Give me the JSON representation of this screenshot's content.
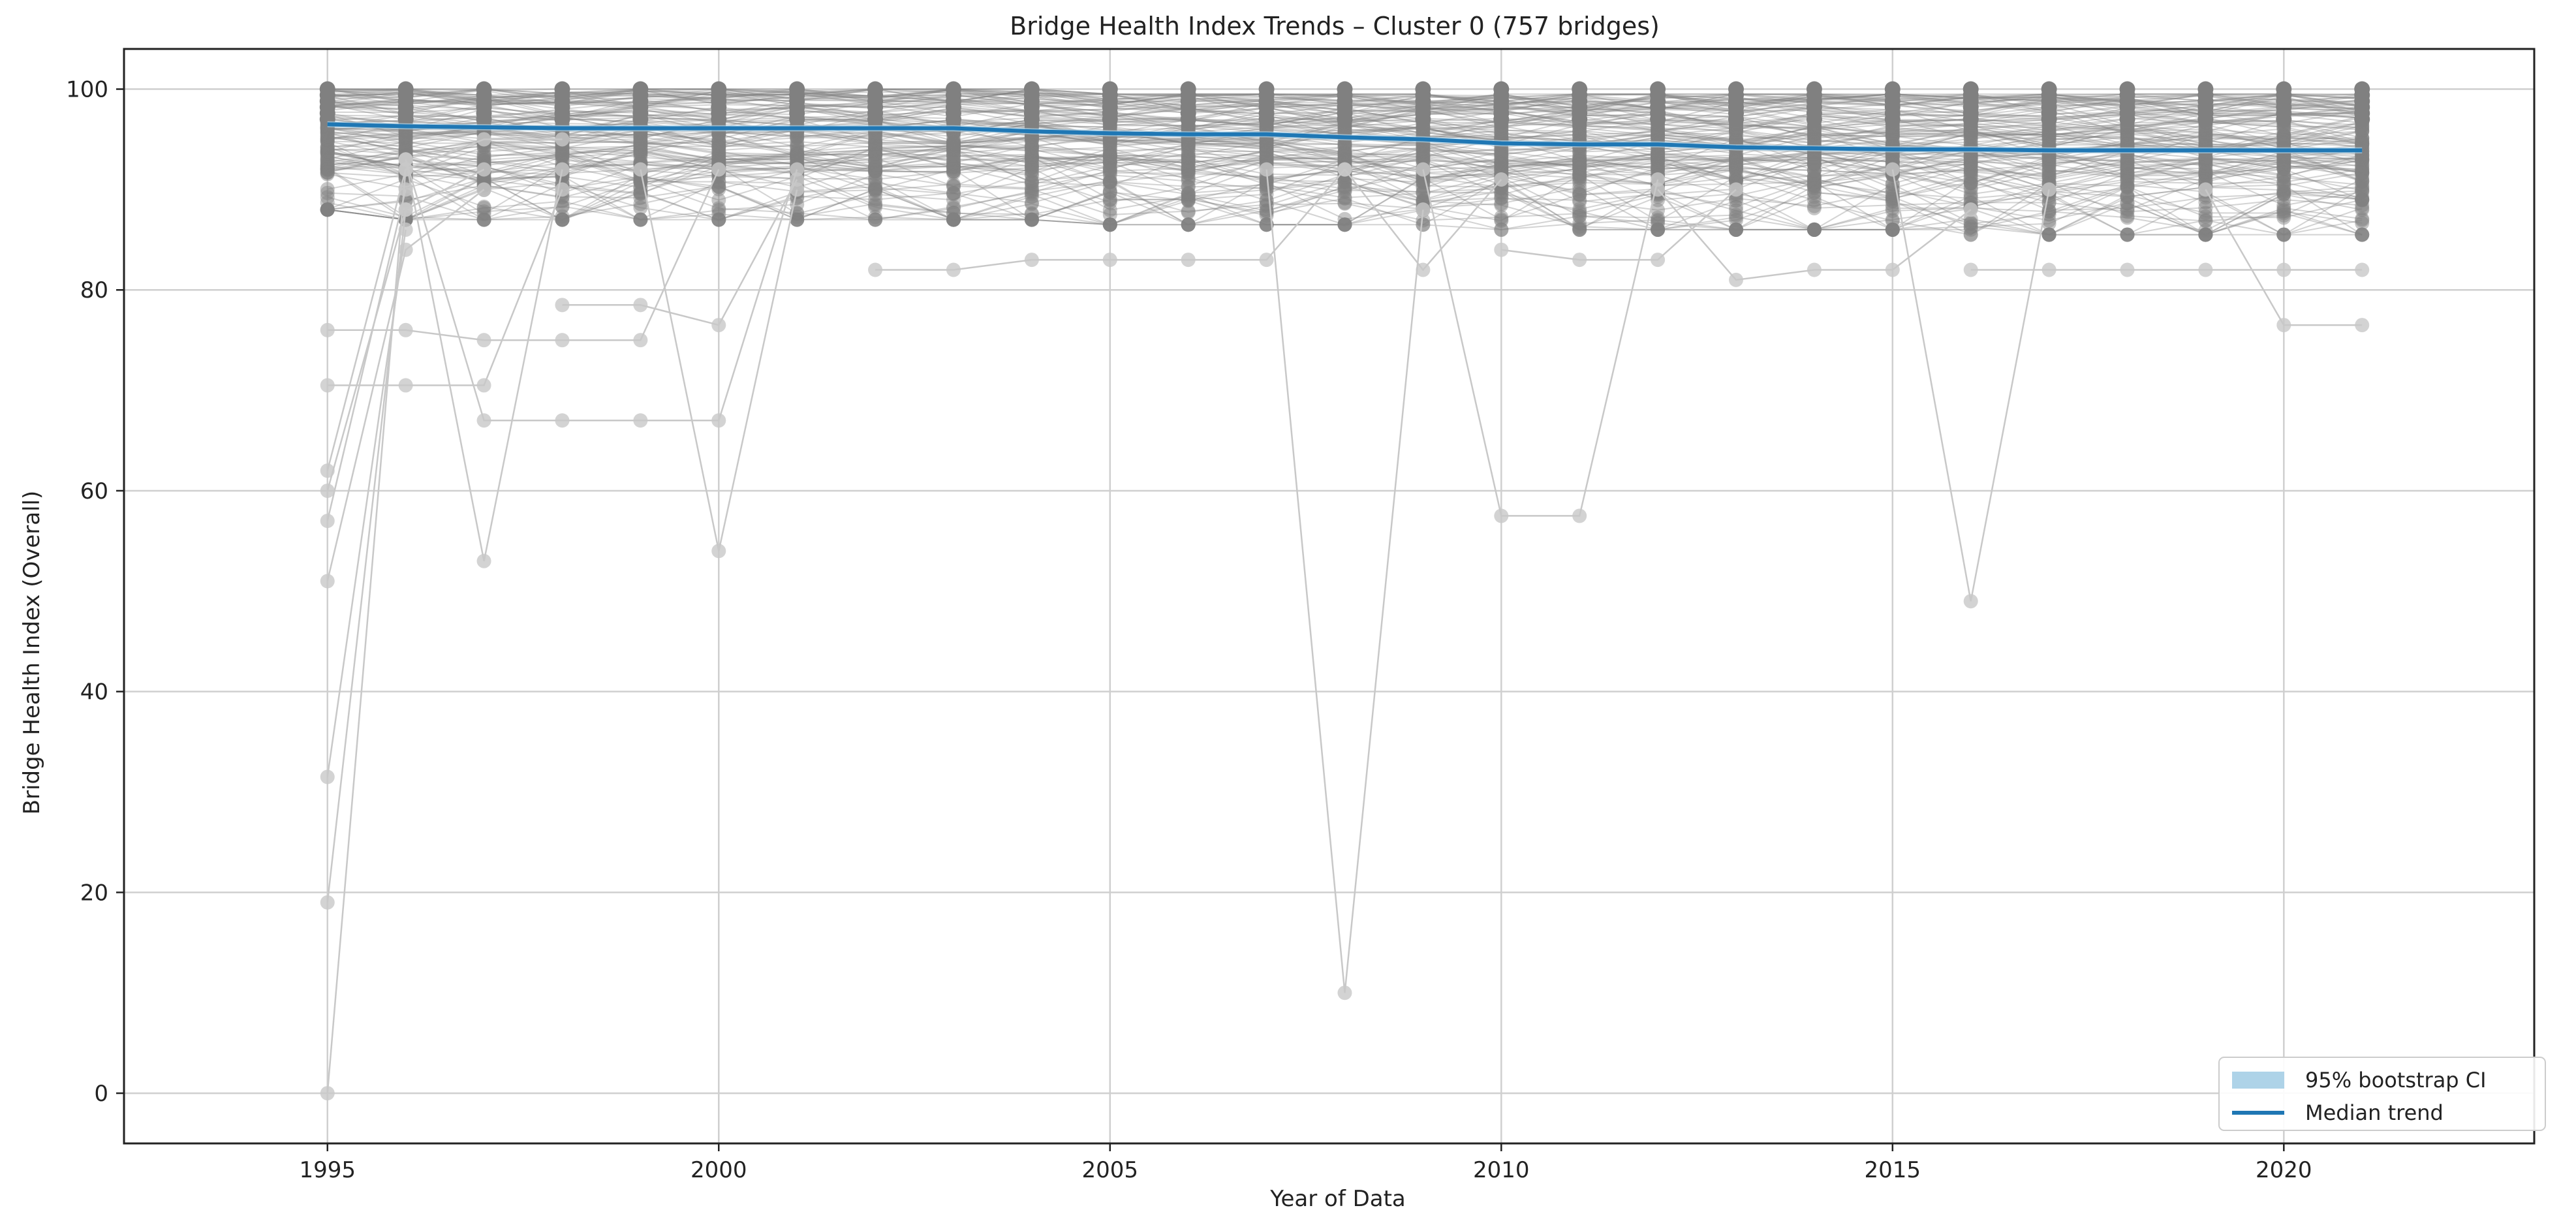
{
  "chart_data": {
    "type": "line",
    "title": "Bridge Health Index Trends – Cluster 0 (757 bridges)",
    "xlabel": "Year of Data",
    "ylabel": "Bridge Health Index (Overall)",
    "xlim": [
      1992.4,
      2023.2
    ],
    "ylim": [
      -5,
      104
    ],
    "xticks": [
      1995,
      2000,
      2005,
      2010,
      2015,
      2020
    ],
    "yticks": [
      0,
      20,
      40,
      60,
      80,
      100
    ],
    "grid": true,
    "legend_position": "lower-right",
    "colors": {
      "individual": "#808080",
      "individual_faint": "#c8c8c8",
      "median": "#1f77b4",
      "ci": "#aed3e8"
    },
    "legend": [
      {
        "label": "95% bootstrap CI",
        "kind": "patch"
      },
      {
        "label": "Median trend",
        "kind": "line"
      }
    ],
    "x": [
      1995,
      1996,
      1997,
      1998,
      1999,
      2000,
      2001,
      2002,
      2003,
      2004,
      2005,
      2006,
      2007,
      2008,
      2009,
      2010,
      2011,
      2012,
      2013,
      2014,
      2015,
      2016,
      2017,
      2018,
      2019,
      2020,
      2021
    ],
    "series": [
      {
        "name": "Median trend",
        "values": [
          96.5,
          96.3,
          96.2,
          96.1,
          96.1,
          96.1,
          96.1,
          96.1,
          96.1,
          95.8,
          95.6,
          95.5,
          95.5,
          95.2,
          95.0,
          94.6,
          94.5,
          94.5,
          94.2,
          94.1,
          94.0,
          94.0,
          93.9,
          93.9,
          93.9,
          93.9,
          93.9
        ]
      },
      {
        "name": "95% bootstrap CI",
        "lower": [
          96.2,
          96.0,
          95.9,
          95.8,
          95.8,
          95.8,
          95.8,
          95.8,
          95.8,
          95.5,
          95.3,
          95.2,
          95.2,
          94.9,
          94.7,
          94.3,
          94.2,
          94.2,
          93.9,
          93.8,
          93.7,
          93.7,
          93.6,
          93.6,
          93.6,
          93.6,
          93.6
        ],
        "upper": [
          96.8,
          96.6,
          96.5,
          96.4,
          96.4,
          96.4,
          96.4,
          96.4,
          96.4,
          96.1,
          95.9,
          95.8,
          95.8,
          95.5,
          95.3,
          94.9,
          94.8,
          94.8,
          94.5,
          94.4,
          94.3,
          94.3,
          94.2,
          94.2,
          94.2,
          94.2,
          94.2
        ]
      }
    ],
    "individual_band": {
      "description_values": "dense cluster of individual bridge trajectories",
      "low": [
        88,
        87,
        87,
        87,
        87,
        87,
        87,
        87,
        87,
        87,
        86.5,
        86.5,
        86.5,
        86.5,
        86.5,
        86,
        86,
        86,
        86,
        86,
        86,
        85.5,
        85.5,
        85.5,
        85.5,
        85.5,
        85.5
      ],
      "high": [
        100,
        100,
        100,
        100,
        100,
        100,
        100,
        100,
        100,
        100,
        99.5,
        99.5,
        99.5,
        99.5,
        99.5,
        99.5,
        99.5,
        99.5,
        99.5,
        99.5,
        99.5,
        99.5,
        99.5,
        99.5,
        99.5,
        99.5,
        99.5
      ]
    },
    "outlier_trajectories": [
      {
        "x": [
          1995,
          1996,
          1997,
          1998
        ],
        "y": [
          0,
          92,
          95,
          95
        ]
      },
      {
        "x": [
          1995,
          1996,
          1997
        ],
        "y": [
          19,
          88,
          92
        ]
      },
      {
        "x": [
          1995,
          1996
        ],
        "y": [
          31.5,
          86
        ]
      },
      {
        "x": [
          1995,
          1996,
          1997
        ],
        "y": [
          51,
          84,
          90
        ]
      },
      {
        "x": [
          1995,
          1996
        ],
        "y": [
          57,
          90
        ]
      },
      {
        "x": [
          1995,
          1996
        ],
        "y": [
          60,
          88
        ]
      },
      {
        "x": [
          1995,
          1996
        ],
        "y": [
          62,
          92
        ]
      },
      {
        "x": [
          1995,
          1996,
          1997,
          1998
        ],
        "y": [
          70.5,
          70.5,
          70.5,
          90
        ]
      },
      {
        "x": [
          1995,
          1996,
          1997,
          1998,
          1999,
          2000
        ],
        "y": [
          76,
          76,
          75,
          75,
          75,
          92
        ]
      },
      {
        "x": [
          1996,
          1997,
          1998,
          1999,
          2000,
          2001
        ],
        "y": [
          93,
          67,
          67,
          67,
          67,
          92
        ]
      },
      {
        "x": [
          1996,
          1997,
          1998
        ],
        "y": [
          93,
          53,
          92
        ]
      },
      {
        "x": [
          1999,
          2000,
          2001
        ],
        "y": [
          92,
          54,
          90
        ]
      },
      {
        "x": [
          1998,
          1999,
          2000,
          2001
        ],
        "y": [
          78.5,
          78.5,
          76.5,
          91
        ]
      },
      {
        "x": [
          2002,
          2003,
          2004,
          2005,
          2006,
          2007,
          2008
        ],
        "y": [
          82,
          82,
          83,
          83,
          83,
          83,
          92
        ]
      },
      {
        "x": [
          2007,
          2008,
          2009
        ],
        "y": [
          92,
          10,
          88
        ]
      },
      {
        "x": [
          2008,
          2009,
          2010
        ],
        "y": [
          92,
          82,
          91
        ]
      },
      {
        "x": [
          2009,
          2010,
          2011,
          2012
        ],
        "y": [
          92,
          57.5,
          57.5,
          91
        ]
      },
      {
        "x": [
          2010,
          2011,
          2012,
          2013
        ],
        "y": [
          84,
          83,
          83,
          90
        ]
      },
      {
        "x": [
          2012,
          2013,
          2014,
          2015,
          2016
        ],
        "y": [
          90,
          81,
          82,
          82,
          88
        ]
      },
      {
        "x": [
          2015,
          2016,
          2017
        ],
        "y": [
          92,
          49,
          90
        ]
      },
      {
        "x": [
          2016,
          2017,
          2018,
          2019,
          2020,
          2021
        ],
        "y": [
          82,
          82,
          82,
          82,
          82,
          82
        ]
      },
      {
        "x": [
          2019,
          2020,
          2021
        ],
        "y": [
          90,
          76.5,
          76.5
        ]
      }
    ]
  }
}
